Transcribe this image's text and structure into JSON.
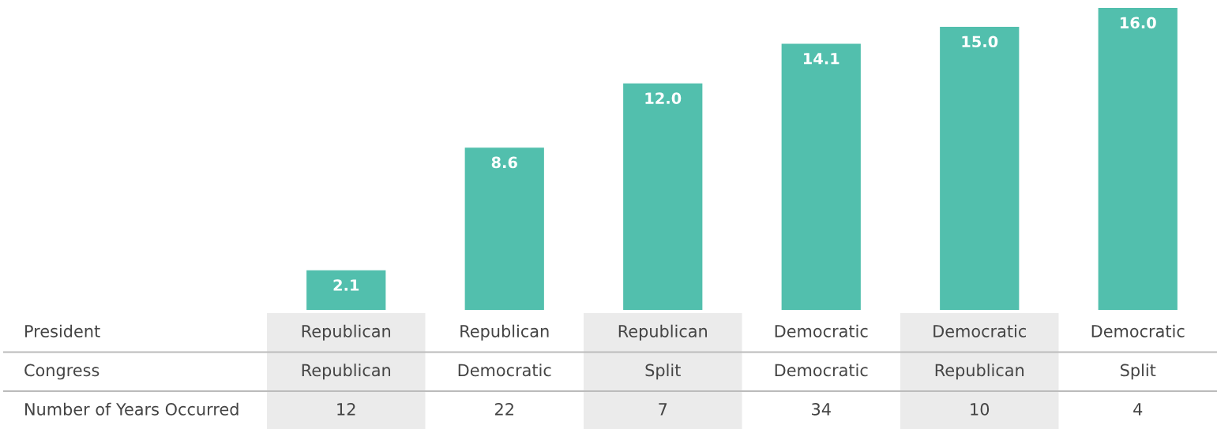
{
  "chart_data": {
    "type": "bar",
    "categories": [
      "Republican",
      "Republican",
      "Republican",
      "Democratic",
      "Democratic",
      "Democratic"
    ],
    "values": [
      2.1,
      8.6,
      12.0,
      14.1,
      15.0,
      16.0
    ],
    "color": "#52bfad",
    "value_labels": [
      "2.1",
      "8.6",
      "12.0",
      "14.1",
      "15.0",
      "16.0"
    ],
    "annotations": [
      "President",
      "Congress",
      "Number of Years Occurred",
      "Republican",
      "Democratic",
      "Split",
      "Democratic",
      "Republican",
      "Split",
      "12",
      "22",
      "7",
      "34",
      "10",
      "4"
    ]
  }
}
